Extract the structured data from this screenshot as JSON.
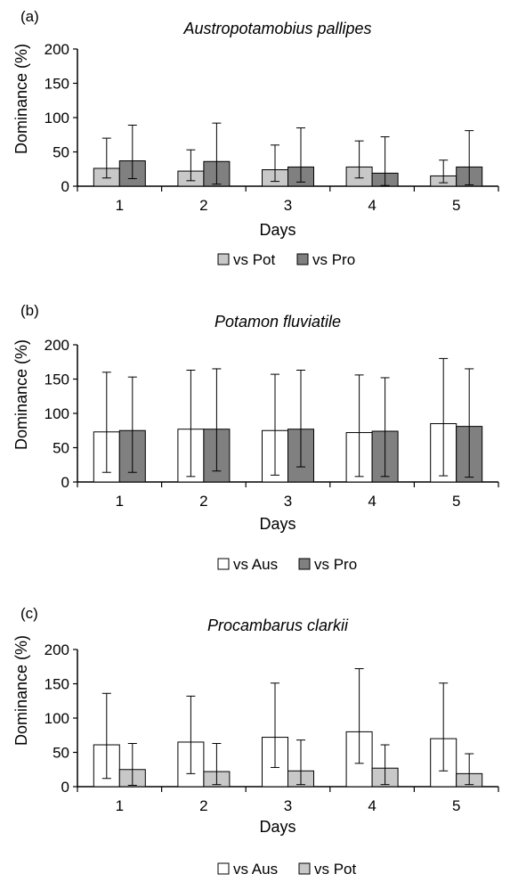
{
  "chart_data": [
    {
      "type": "bar",
      "panel_label": "(a)",
      "title": "Austropotamobius pallipes",
      "xlabel": "Days",
      "ylabel": "Dominance (%)",
      "ylim": [
        0,
        200
      ],
      "yticks": [
        0,
        50,
        100,
        150,
        200
      ],
      "categories": [
        "1",
        "2",
        "3",
        "4",
        "5"
      ],
      "series": [
        {
          "name": "vs Pot",
          "color": "#c8c8c8",
          "values": [
            26,
            22,
            24,
            28,
            15
          ],
          "err_high": [
            70,
            53,
            60,
            66,
            38
          ],
          "err_low": [
            12,
            8,
            7,
            12,
            5
          ]
        },
        {
          "name": "vs Pro",
          "color": "#808080",
          "values": [
            37,
            36,
            28,
            19,
            28
          ],
          "err_high": [
            89,
            92,
            85,
            72,
            81
          ],
          "err_low": [
            11,
            3,
            6,
            1,
            2
          ]
        }
      ]
    },
    {
      "type": "bar",
      "panel_label": "(b)",
      "title": "Potamon fluviatile",
      "xlabel": "Days",
      "ylabel": "Dominance (%)",
      "ylim": [
        0,
        200
      ],
      "yticks": [
        0,
        50,
        100,
        150,
        200
      ],
      "categories": [
        "1",
        "2",
        "3",
        "4",
        "5"
      ],
      "series": [
        {
          "name": "vs Aus",
          "color": "#ffffff",
          "values": [
            73,
            77,
            75,
            72,
            85
          ],
          "err_high": [
            160,
            163,
            157,
            156,
            180
          ],
          "err_low": [
            14,
            8,
            10,
            8,
            9
          ]
        },
        {
          "name": "vs Pro",
          "color": "#808080",
          "values": [
            75,
            77,
            77,
            74,
            81
          ],
          "err_high": [
            153,
            165,
            163,
            152,
            165
          ],
          "err_low": [
            14,
            16,
            22,
            8,
            7
          ]
        }
      ]
    },
    {
      "type": "bar",
      "panel_label": "(c)",
      "title": "Procambarus clarkii",
      "xlabel": "Days",
      "ylabel": "Dominance (%)",
      "ylim": [
        0,
        200
      ],
      "yticks": [
        0,
        50,
        100,
        150,
        200
      ],
      "categories": [
        "1",
        "2",
        "3",
        "4",
        "5"
      ],
      "series": [
        {
          "name": "vs Aus",
          "color": "#ffffff",
          "values": [
            61,
            65,
            72,
            80,
            70
          ],
          "err_high": [
            136,
            132,
            151,
            172,
            151
          ],
          "err_low": [
            12,
            19,
            28,
            34,
            23
          ]
        },
        {
          "name": "vs Pot",
          "color": "#c8c8c8",
          "values": [
            25,
            22,
            23,
            27,
            19
          ],
          "err_high": [
            63,
            63,
            68,
            61,
            48
          ],
          "err_low": [
            2,
            3,
            3,
            3,
            3
          ]
        }
      ]
    }
  ]
}
